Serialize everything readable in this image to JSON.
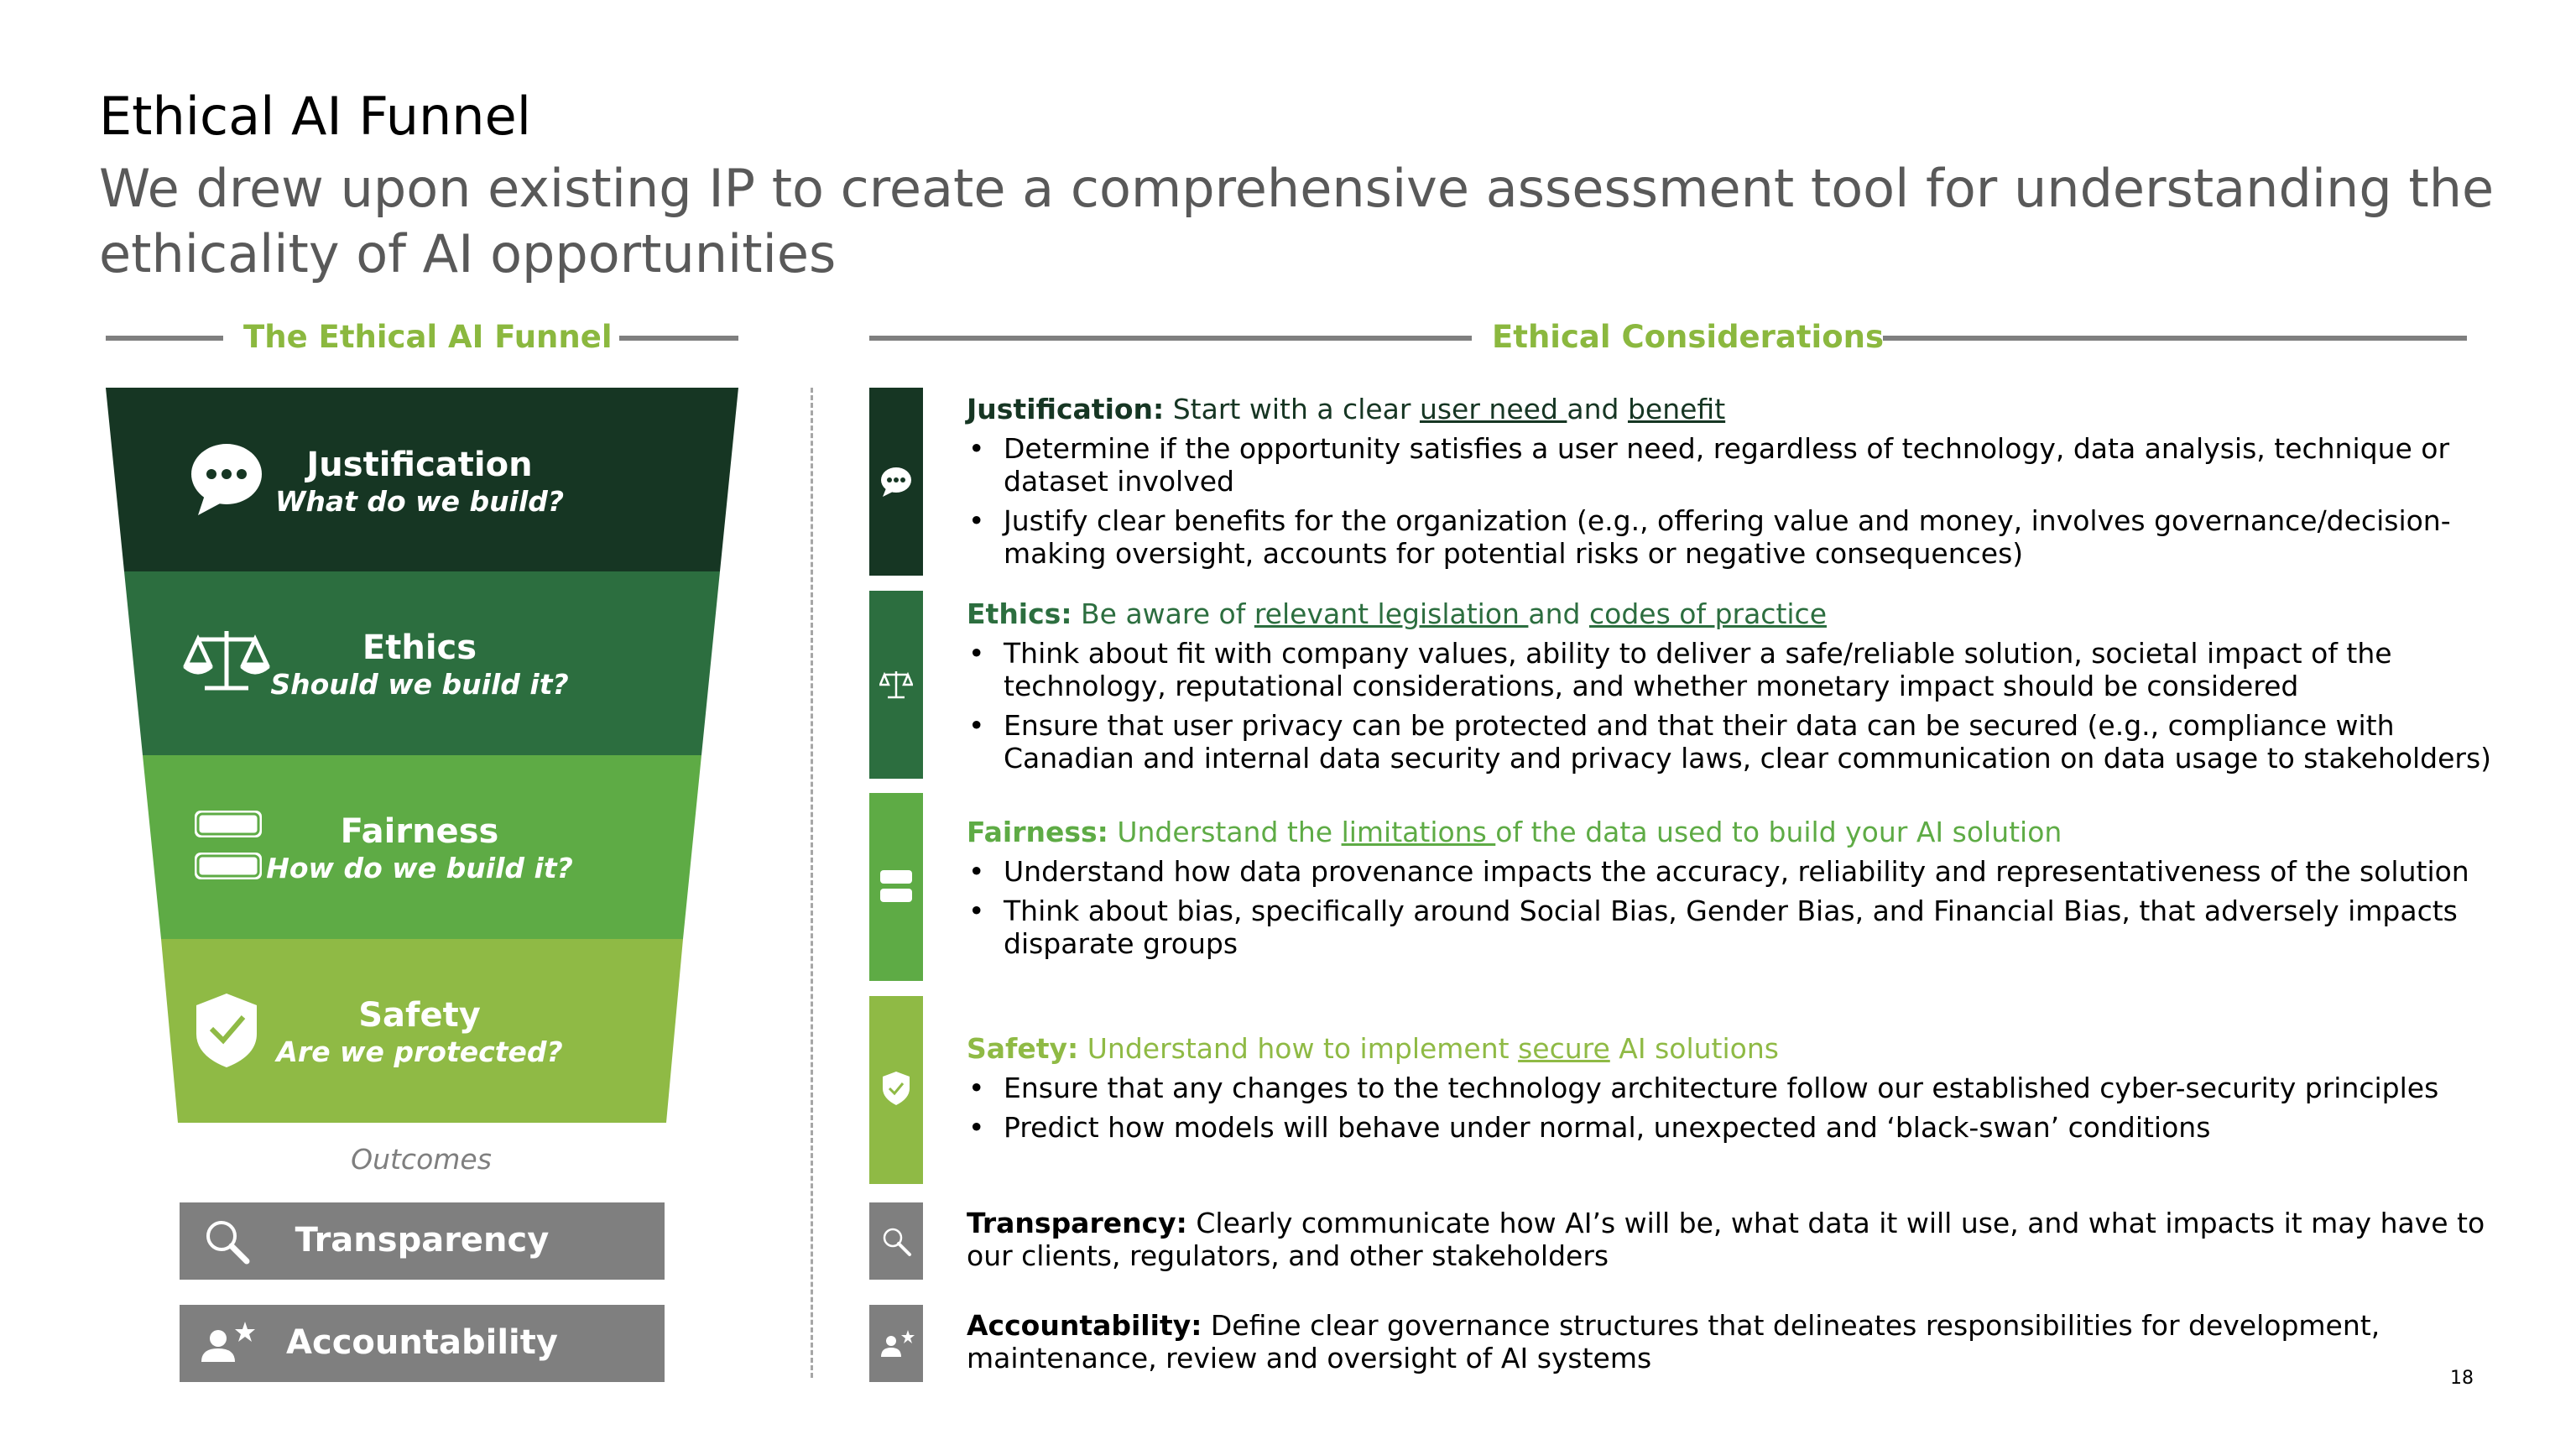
{
  "title": "Ethical AI Funnel",
  "subtitle": "We drew upon existing IP to create a comprehensive assessment tool for understanding the ethicality of AI opportunities",
  "left_section_label": "The Ethical AI Funnel",
  "right_section_label": "Ethical Considerations",
  "colors": {
    "dark_green": "#163623",
    "mid_green": "#2c6e3f",
    "green": "#5eab45",
    "light_green": "#8fba45",
    "gray": "#7f7f7f",
    "accent_label": "#8bb83f"
  },
  "funnel": [
    {
      "heading": "Justification",
      "question": "What do we build?",
      "icon": "speech-bubble-icon"
    },
    {
      "heading": "Ethics",
      "question": "Should we build it?",
      "icon": "scales-icon"
    },
    {
      "heading": "Fairness",
      "question": "How do we build it?",
      "icon": "database-icon"
    },
    {
      "heading": "Safety",
      "question": "Are we protected?",
      "icon": "shield-check-icon"
    }
  ],
  "outcomes_label": "Outcomes",
  "outcomes": [
    {
      "label": "Transparency",
      "icon": "magnifier-icon"
    },
    {
      "label": "Accountability",
      "icon": "person-star-icon"
    }
  ],
  "considerations": {
    "justification": {
      "head": "Justification:",
      "t1": " Start with a clear ",
      "link1": "user need ",
      "t2": "and ",
      "link2": "benefit",
      "bullets": [
        "Determine if the opportunity satisfies a user need, regardless of technology, data analysis, technique or dataset involved",
        "Justify clear benefits for the organization (e.g., offering value and money, involves governance/decision-making oversight, accounts for potential risks or negative consequences)"
      ]
    },
    "ethics": {
      "head": "Ethics:",
      "t1": " Be aware of ",
      "link1": "relevant legislation ",
      "t2": "and ",
      "link2": "codes of practice",
      "bullets": [
        "Think about fit with company values, ability to deliver a safe/reliable solution, societal impact of the technology, reputational considerations, and whether monetary impact should be considered",
        "Ensure that user privacy can be protected and that their data can be secured (e.g., compliance with Canadian and internal data security and privacy laws, clear communication on data usage to stakeholders)"
      ]
    },
    "fairness": {
      "head": "Fairness:",
      "t1": " Understand the ",
      "link1": "limitations ",
      "t2": "of the data used to build your AI solution",
      "bullets": [
        "Understand how data provenance impacts the accuracy, reliability and representativeness of the solution",
        "Think about bias, specifically around Social Bias, Gender Bias, and Financial Bias, that adversely impacts disparate groups"
      ]
    },
    "safety": {
      "head": "Safety:",
      "t1": " Understand how to implement ",
      "link1": "secure",
      "t2": " AI solutions",
      "bullets": [
        "Ensure that any changes to the technology architecture follow our established cyber-security principles",
        "Predict how models will behave under normal, unexpected and ‘black-swan’ conditions"
      ]
    },
    "transparency": {
      "head": "Transparency:",
      "text": " Clearly communicate how AI’s will be, what data it will use, and what impacts it may have to our clients, regulators, and other stakeholders"
    },
    "accountability": {
      "head": "Accountability:",
      "text": " Define clear governance structures that delineates responsibilities for development, maintenance, review and oversight of AI systems"
    }
  },
  "page_number": "18"
}
